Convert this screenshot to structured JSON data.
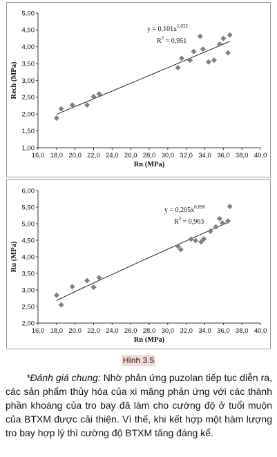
{
  "chart_data": [
    {
      "type": "scatter",
      "title": "",
      "xlabel": "Rn (MPa)",
      "ylabel": "Rech (MPa)",
      "xlim": [
        16.0,
        40.0
      ],
      "ylim": [
        1.0,
        5.0
      ],
      "x_ticks": [
        "16,0",
        "18,0",
        "20,0",
        "22,0",
        "24,0",
        "26,0",
        "28,0",
        "30,0",
        "32,0",
        "34,0",
        "36,0",
        "38,0",
        "40,0"
      ],
      "y_ticks": [
        "1,00",
        "1,50",
        "2,00",
        "2,50",
        "3,00",
        "3,50",
        "4,00",
        "4,50",
        "5,00"
      ],
      "grid": false,
      "legend": "none",
      "trendline": {
        "type": "power",
        "a": 0.101,
        "b": 1.032
      },
      "equation": {
        "base": "y = 0,101x",
        "exp": "1,032"
      },
      "r2": {
        "base": "R",
        "exp": "2",
        "value": " = 0,951"
      },
      "marker_color": "#7f7f7f",
      "points": [
        {
          "x": 18.0,
          "y": 1.88
        },
        {
          "x": 18.5,
          "y": 2.16
        },
        {
          "x": 19.7,
          "y": 2.27
        },
        {
          "x": 21.3,
          "y": 2.27
        },
        {
          "x": 22.0,
          "y": 2.52
        },
        {
          "x": 22.6,
          "y": 2.6
        },
        {
          "x": 31.1,
          "y": 3.38
        },
        {
          "x": 31.5,
          "y": 3.66
        },
        {
          "x": 32.4,
          "y": 3.6
        },
        {
          "x": 32.8,
          "y": 3.86
        },
        {
          "x": 33.5,
          "y": 4.31
        },
        {
          "x": 33.8,
          "y": 3.93
        },
        {
          "x": 34.4,
          "y": 3.55
        },
        {
          "x": 35.0,
          "y": 3.6
        },
        {
          "x": 35.6,
          "y": 4.08
        },
        {
          "x": 36.0,
          "y": 4.25
        },
        {
          "x": 36.5,
          "y": 3.82
        },
        {
          "x": 36.7,
          "y": 4.35
        }
      ]
    },
    {
      "type": "scatter",
      "title": "",
      "xlabel": "Rn (MPa)",
      "ylabel": "Ru (MPa)",
      "xlim": [
        16.0,
        40.0
      ],
      "ylim": [
        2.0,
        6.0
      ],
      "x_ticks": [
        "16,0",
        "18,0",
        "20,0",
        "22,0",
        "24,0",
        "26,0",
        "28,0",
        "30,0",
        "32,0",
        "34,0",
        "36,0",
        "38,0",
        "40,0"
      ],
      "y_ticks": [
        "2,00",
        "2,50",
        "3,00",
        "3,50",
        "4,00",
        "4,50",
        "5,00",
        "5,50",
        "6,00"
      ],
      "grid": false,
      "legend": "none",
      "trendline": {
        "type": "power",
        "a": 0.205,
        "b": 0.89
      },
      "equation": {
        "base": "y = 0,205x",
        "exp": "0,890"
      },
      "r2": {
        "base": "R",
        "exp": "2",
        "value": " = 0,963"
      },
      "marker_color": "#7f7f7f",
      "points": [
        {
          "x": 18.0,
          "y": 2.84
        },
        {
          "x": 18.5,
          "y": 2.55
        },
        {
          "x": 19.7,
          "y": 3.1
        },
        {
          "x": 21.3,
          "y": 3.28
        },
        {
          "x": 22.0,
          "y": 3.08
        },
        {
          "x": 22.6,
          "y": 3.37
        },
        {
          "x": 31.1,
          "y": 4.32
        },
        {
          "x": 31.4,
          "y": 4.22
        },
        {
          "x": 32.5,
          "y": 4.53
        },
        {
          "x": 33.0,
          "y": 4.49
        },
        {
          "x": 33.6,
          "y": 4.45
        },
        {
          "x": 33.9,
          "y": 4.54
        },
        {
          "x": 34.6,
          "y": 4.77
        },
        {
          "x": 35.2,
          "y": 4.9
        },
        {
          "x": 35.6,
          "y": 5.15
        },
        {
          "x": 35.9,
          "y": 5.02
        },
        {
          "x": 36.5,
          "y": 5.08
        },
        {
          "x": 36.7,
          "y": 5.52
        }
      ]
    }
  ],
  "figure_label": "Hình 3.5",
  "caption": {
    "lead": "*Đánh giá chung:",
    "body": " Nhờ phản ứng puzolan tiếp tục diễn ra, các sản phẩm thủy hóa của xi măng phản ứng với các thành phần khoáng của tro bay đã làm cho cường độ ở tuổi muộn của BTXM được cải thiện. Vì thế, khi kết hợp một hàm lượng tro bay hợp lý thì cường độ BTXM tăng đáng kể."
  }
}
